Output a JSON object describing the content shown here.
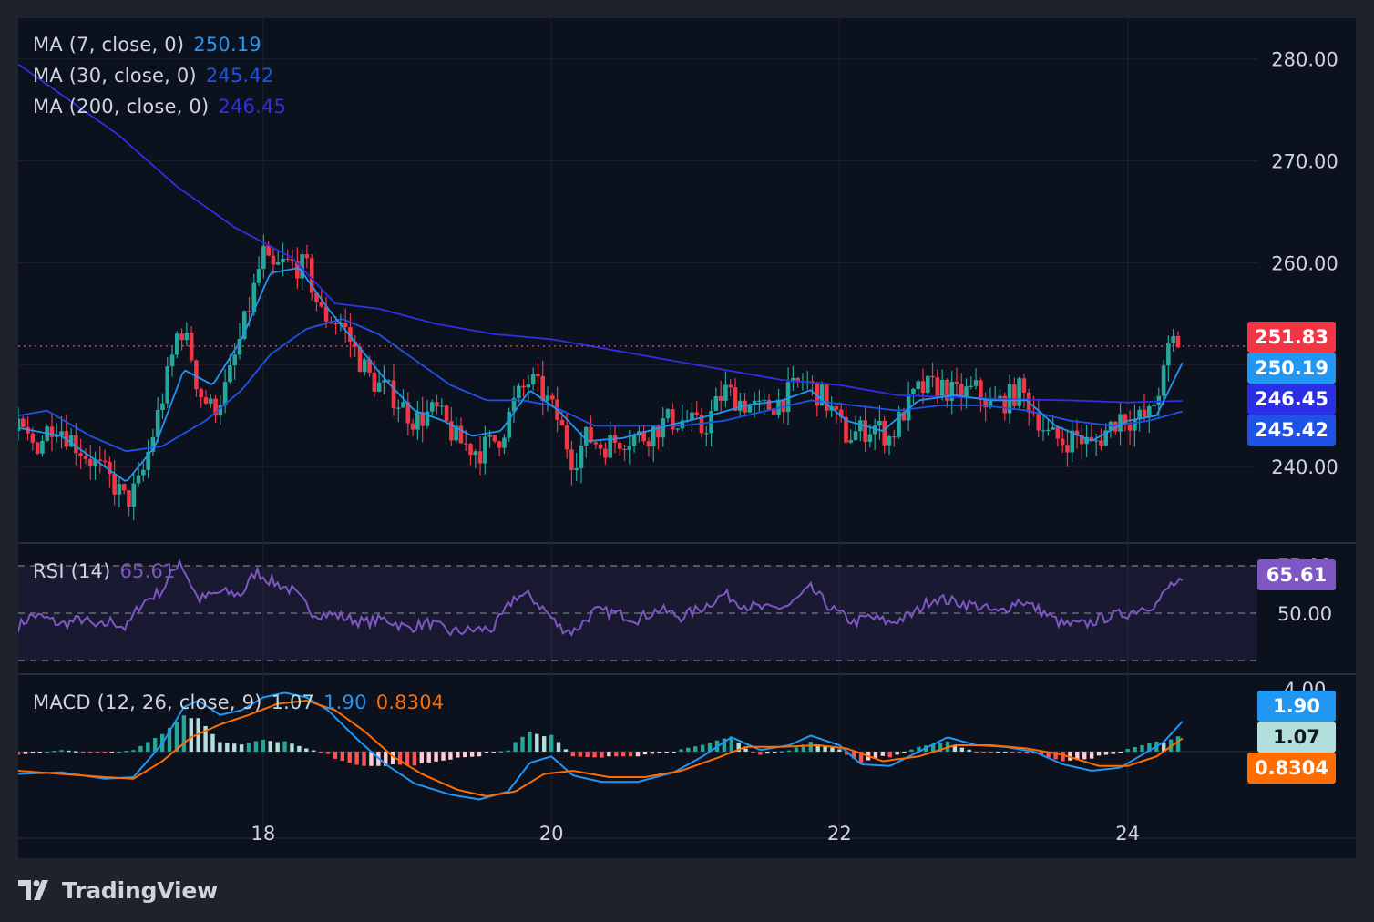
{
  "colors": {
    "background": "#0c111e",
    "up": "#26a69a",
    "down": "#f23645",
    "ma7": "#2196f3",
    "ma30": "#1e53e5",
    "ma200": "#3030e0",
    "rsi": "#7e57c2",
    "macd": "#2196f3",
    "signal": "#ff6d00",
    "current_price": "#f23645"
  },
  "legend": {
    "ma7": {
      "label": "MA (7, close, 0)",
      "value": "250.19"
    },
    "ma30": {
      "label": "MA (30, close, 0)",
      "value": "245.42"
    },
    "ma200": {
      "label": "MA (200, close, 0)",
      "value": "246.45"
    },
    "rsi": {
      "label": "RSI (14)",
      "value": "65.61"
    },
    "macd": {
      "label": "MACD (12, 26, close, 9)",
      "hist": "1.07",
      "macd": "1.90",
      "signal": "0.8304"
    }
  },
  "badges": {
    "price": "251.83",
    "ma7": "250.19",
    "ma200": "246.45",
    "ma30": "245.42",
    "rsi": "65.61",
    "macd": "1.90",
    "hist": "1.07",
    "signal": "0.8304"
  },
  "price_axis": [
    "280.00",
    "270.00",
    "260.00",
    "240.00"
  ],
  "rsi_axis": [
    "75.00",
    "50.00"
  ],
  "macd_axis": [
    "4.00"
  ],
  "time_axis": [
    "18",
    "20",
    "22",
    "24"
  ],
  "brand": "TradingView",
  "chart_data": {
    "type": "candlestick",
    "x_range_days": [
      16.3,
      24.9
    ],
    "price_ylim": [
      232.5,
      284
    ],
    "current_price": 251.83,
    "time_ticks": [
      18,
      20,
      22,
      24
    ],
    "candle_close_path": [
      [
        16.3,
        243.5
      ],
      [
        16.42,
        242.0
      ],
      [
        16.55,
        244.5
      ],
      [
        16.7,
        242.2
      ],
      [
        16.85,
        240.0
      ],
      [
        16.95,
        238.5
      ],
      [
        17.05,
        236.5
      ],
      [
        17.15,
        238.5
      ],
      [
        17.25,
        244.0
      ],
      [
        17.35,
        249.5
      ],
      [
        17.42,
        254.0
      ],
      [
        17.5,
        251.0
      ],
      [
        17.55,
        247.5
      ],
      [
        17.65,
        245.5
      ],
      [
        17.75,
        248.0
      ],
      [
        17.85,
        253.0
      ],
      [
        17.92,
        256.5
      ],
      [
        18.0,
        261.0
      ],
      [
        18.05,
        259.0
      ],
      [
        18.15,
        260.0
      ],
      [
        18.3,
        259.5
      ],
      [
        18.4,
        255.0
      ],
      [
        18.55,
        254.0
      ],
      [
        18.65,
        251.0
      ],
      [
        18.75,
        248.5
      ],
      [
        18.9,
        247.0
      ],
      [
        19.05,
        244.5
      ],
      [
        19.2,
        245.5
      ],
      [
        19.35,
        242.5
      ],
      [
        19.5,
        241.5
      ],
      [
        19.65,
        243.0
      ],
      [
        19.75,
        246.5
      ],
      [
        19.85,
        248.5
      ],
      [
        19.95,
        247.0
      ],
      [
        20.05,
        244.5
      ],
      [
        20.15,
        240.5
      ],
      [
        20.25,
        243.0
      ],
      [
        20.35,
        242.0
      ],
      [
        20.5,
        242.8
      ],
      [
        20.65,
        243.0
      ],
      [
        20.8,
        244.5
      ],
      [
        20.95,
        244.5
      ],
      [
        21.05,
        243.5
      ],
      [
        21.2,
        247.5
      ],
      [
        21.3,
        246.5
      ],
      [
        21.45,
        245.5
      ],
      [
        21.6,
        246.5
      ],
      [
        21.75,
        248.5
      ],
      [
        21.9,
        246.5
      ],
      [
        22.05,
        243.0
      ],
      [
        22.15,
        243.5
      ],
      [
        22.25,
        244.0
      ],
      [
        22.35,
        242.8
      ],
      [
        22.45,
        245.5
      ],
      [
        22.55,
        247.5
      ],
      [
        22.7,
        248.0
      ],
      [
        22.8,
        247.0
      ],
      [
        22.95,
        247.5
      ],
      [
        23.05,
        246.0
      ],
      [
        23.15,
        246.5
      ],
      [
        23.25,
        247.5
      ],
      [
        23.35,
        245.5
      ],
      [
        23.45,
        243.0
      ],
      [
        23.55,
        242.5
      ],
      [
        23.65,
        243.0
      ],
      [
        23.75,
        242.0
      ],
      [
        23.85,
        243.5
      ],
      [
        23.95,
        245.0
      ],
      [
        24.05,
        244.5
      ],
      [
        24.15,
        245.0
      ],
      [
        24.25,
        249.0
      ],
      [
        24.3,
        252.5
      ],
      [
        24.38,
        251.83
      ]
    ],
    "series": [
      {
        "name": "MA (7, close, 0)",
        "last": 250.19,
        "points": [
          [
            16.3,
            243.8
          ],
          [
            16.6,
            243.0
          ],
          [
            16.85,
            240.5
          ],
          [
            17.05,
            238.5
          ],
          [
            17.25,
            242.0
          ],
          [
            17.45,
            249.5
          ],
          [
            17.65,
            248.0
          ],
          [
            17.85,
            252.5
          ],
          [
            18.05,
            259.0
          ],
          [
            18.25,
            259.5
          ],
          [
            18.45,
            255.5
          ],
          [
            18.65,
            252.0
          ],
          [
            18.85,
            248.5
          ],
          [
            19.05,
            245.5
          ],
          [
            19.25,
            244.5
          ],
          [
            19.45,
            243.0
          ],
          [
            19.65,
            243.5
          ],
          [
            19.85,
            247.5
          ],
          [
            20.05,
            245.5
          ],
          [
            20.25,
            242.5
          ],
          [
            20.5,
            242.8
          ],
          [
            20.8,
            244.0
          ],
          [
            21.1,
            245.0
          ],
          [
            21.35,
            246.0
          ],
          [
            21.6,
            246.5
          ],
          [
            21.8,
            247.5
          ],
          [
            22.05,
            244.5
          ],
          [
            22.3,
            243.5
          ],
          [
            22.55,
            246.5
          ],
          [
            22.8,
            247.0
          ],
          [
            23.05,
            246.5
          ],
          [
            23.3,
            246.5
          ],
          [
            23.5,
            244.0
          ],
          [
            23.75,
            242.5
          ],
          [
            24.0,
            244.5
          ],
          [
            24.2,
            245.0
          ],
          [
            24.38,
            250.19
          ]
        ]
      },
      {
        "name": "MA (30, close, 0)",
        "last": 245.42,
        "points": [
          [
            16.3,
            245.0
          ],
          [
            16.5,
            245.5
          ],
          [
            16.8,
            243.0
          ],
          [
            17.05,
            241.5
          ],
          [
            17.3,
            242.0
          ],
          [
            17.6,
            244.5
          ],
          [
            17.85,
            247.5
          ],
          [
            18.05,
            251.0
          ],
          [
            18.3,
            253.5
          ],
          [
            18.55,
            254.5
          ],
          [
            18.8,
            253.0
          ],
          [
            19.05,
            250.5
          ],
          [
            19.3,
            248.0
          ],
          [
            19.55,
            246.5
          ],
          [
            19.8,
            246.5
          ],
          [
            20.0,
            246.0
          ],
          [
            20.3,
            244.0
          ],
          [
            20.6,
            244.0
          ],
          [
            20.9,
            244.0
          ],
          [
            21.2,
            244.5
          ],
          [
            21.5,
            245.5
          ],
          [
            21.8,
            246.5
          ],
          [
            22.1,
            246.0
          ],
          [
            22.4,
            245.5
          ],
          [
            22.7,
            246.0
          ],
          [
            23.0,
            246.0
          ],
          [
            23.3,
            245.5
          ],
          [
            23.6,
            244.5
          ],
          [
            23.9,
            244.0
          ],
          [
            24.15,
            244.5
          ],
          [
            24.38,
            245.42
          ]
        ]
      },
      {
        "name": "MA (200, close, 0)",
        "last": 246.45,
        "points": [
          [
            16.3,
            279.5
          ],
          [
            16.6,
            276.5
          ],
          [
            17.0,
            272.5
          ],
          [
            17.4,
            267.5
          ],
          [
            17.8,
            263.5
          ],
          [
            18.2,
            260.5
          ],
          [
            18.5,
            256.0
          ],
          [
            18.8,
            255.5
          ],
          [
            19.2,
            254.0
          ],
          [
            19.6,
            253.0
          ],
          [
            20.0,
            252.5
          ],
          [
            20.4,
            251.5
          ],
          [
            20.8,
            250.5
          ],
          [
            21.2,
            249.5
          ],
          [
            21.6,
            248.5
          ],
          [
            22.0,
            248.0
          ],
          [
            22.4,
            247.0
          ],
          [
            22.8,
            246.8
          ],
          [
            23.2,
            246.6
          ],
          [
            23.6,
            246.5
          ],
          [
            24.0,
            246.3
          ],
          [
            24.38,
            246.45
          ]
        ]
      }
    ],
    "rsi": {
      "ylim": [
        40,
        80
      ],
      "upper": 75,
      "middle": 50,
      "lower": 25,
      "last": 65.61,
      "points": [
        [
          16.3,
          43
        ],
        [
          16.4,
          49
        ],
        [
          16.5,
          47
        ],
        [
          16.6,
          44
        ],
        [
          16.75,
          47
        ],
        [
          16.85,
          42
        ],
        [
          16.95,
          46
        ],
        [
          17.05,
          42
        ],
        [
          17.15,
          55
        ],
        [
          17.3,
          62
        ],
        [
          17.42,
          78
        ],
        [
          17.55,
          57
        ],
        [
          17.7,
          61
        ],
        [
          17.85,
          60
        ],
        [
          17.95,
          72
        ],
        [
          18.05,
          67
        ],
        [
          18.2,
          62
        ],
        [
          18.35,
          50
        ],
        [
          18.5,
          49
        ],
        [
          18.7,
          45
        ],
        [
          18.85,
          47
        ],
        [
          19.0,
          42
        ],
        [
          19.15,
          45
        ],
        [
          19.3,
          40
        ],
        [
          19.45,
          41
        ],
        [
          19.6,
          42
        ],
        [
          19.75,
          59
        ],
        [
          19.85,
          59
        ],
        [
          19.95,
          52
        ],
        [
          20.05,
          43
        ],
        [
          20.15,
          40
        ],
        [
          20.3,
          51
        ],
        [
          20.45,
          50
        ],
        [
          20.6,
          47
        ],
        [
          20.75,
          52
        ],
        [
          20.9,
          48
        ],
        [
          21.05,
          53
        ],
        [
          21.2,
          60
        ],
        [
          21.35,
          54
        ],
        [
          21.5,
          52
        ],
        [
          21.65,
          54
        ],
        [
          21.8,
          63
        ],
        [
          21.95,
          52
        ],
        [
          22.1,
          45
        ],
        [
          22.2,
          48
        ],
        [
          22.35,
          45
        ],
        [
          22.5,
          49
        ],
        [
          22.65,
          58
        ],
        [
          22.8,
          56
        ],
        [
          22.95,
          54
        ],
        [
          23.1,
          50
        ],
        [
          23.25,
          57
        ],
        [
          23.4,
          51
        ],
        [
          23.55,
          44
        ],
        [
          23.7,
          44
        ],
        [
          23.85,
          48
        ],
        [
          24.0,
          50
        ],
        [
          24.1,
          53
        ],
        [
          24.2,
          55
        ],
        [
          24.3,
          65
        ],
        [
          24.38,
          65.61
        ]
      ]
    },
    "macd": {
      "ylim": [
        -3.2,
        4.2
      ],
      "hist_last": 1.07,
      "macd_last": 1.9,
      "signal_last": 0.8304,
      "macd_points": [
        [
          16.3,
          -1.4
        ],
        [
          16.6,
          -1.3
        ],
        [
          16.9,
          -1.7
        ],
        [
          17.1,
          -1.6
        ],
        [
          17.3,
          0.5
        ],
        [
          17.45,
          2.8
        ],
        [
          17.55,
          3.2
        ],
        [
          17.7,
          2.3
        ],
        [
          17.85,
          2.6
        ],
        [
          18.0,
          3.4
        ],
        [
          18.15,
          3.7
        ],
        [
          18.3,
          3.4
        ],
        [
          18.45,
          2.6
        ],
        [
          18.65,
          0.8
        ],
        [
          18.85,
          -0.8
        ],
        [
          19.05,
          -2.0
        ],
        [
          19.3,
          -2.7
        ],
        [
          19.5,
          -3.0
        ],
        [
          19.7,
          -2.5
        ],
        [
          19.85,
          -0.7
        ],
        [
          20.0,
          -0.3
        ],
        [
          20.15,
          -1.5
        ],
        [
          20.35,
          -1.9
        ],
        [
          20.6,
          -1.9
        ],
        [
          20.85,
          -1.3
        ],
        [
          21.05,
          -0.3
        ],
        [
          21.25,
          0.9
        ],
        [
          21.45,
          0.1
        ],
        [
          21.65,
          0.4
        ],
        [
          21.8,
          1.0
        ],
        [
          22.0,
          0.4
        ],
        [
          22.15,
          -0.8
        ],
        [
          22.35,
          -0.9
        ],
        [
          22.55,
          0.0
        ],
        [
          22.75,
          0.9
        ],
        [
          22.95,
          0.4
        ],
        [
          23.15,
          0.3
        ],
        [
          23.35,
          0.0
        ],
        [
          23.55,
          -0.8
        ],
        [
          23.75,
          -1.2
        ],
        [
          23.95,
          -1.0
        ],
        [
          24.1,
          -0.2
        ],
        [
          24.25,
          0.6
        ],
        [
          24.38,
          1.9
        ]
      ],
      "signal_points": [
        [
          16.3,
          -1.2
        ],
        [
          16.6,
          -1.4
        ],
        [
          16.9,
          -1.6
        ],
        [
          17.1,
          -1.7
        ],
        [
          17.3,
          -0.6
        ],
        [
          17.5,
          0.9
        ],
        [
          17.7,
          1.7
        ],
        [
          17.9,
          2.3
        ],
        [
          18.1,
          3.0
        ],
        [
          18.3,
          3.2
        ],
        [
          18.5,
          2.6
        ],
        [
          18.7,
          1.3
        ],
        [
          18.9,
          -0.3
        ],
        [
          19.1,
          -1.4
        ],
        [
          19.35,
          -2.4
        ],
        [
          19.55,
          -2.8
        ],
        [
          19.75,
          -2.5
        ],
        [
          19.95,
          -1.4
        ],
        [
          20.15,
          -1.2
        ],
        [
          20.4,
          -1.6
        ],
        [
          20.65,
          -1.6
        ],
        [
          20.9,
          -1.2
        ],
        [
          21.15,
          -0.4
        ],
        [
          21.35,
          0.3
        ],
        [
          21.6,
          0.3
        ],
        [
          21.85,
          0.4
        ],
        [
          22.05,
          0.2
        ],
        [
          22.3,
          -0.6
        ],
        [
          22.55,
          -0.3
        ],
        [
          22.8,
          0.4
        ],
        [
          23.05,
          0.4
        ],
        [
          23.3,
          0.2
        ],
        [
          23.55,
          -0.2
        ],
        [
          23.8,
          -0.9
        ],
        [
          24.0,
          -0.9
        ],
        [
          24.2,
          -0.3
        ],
        [
          24.38,
          0.8304
        ]
      ]
    }
  }
}
